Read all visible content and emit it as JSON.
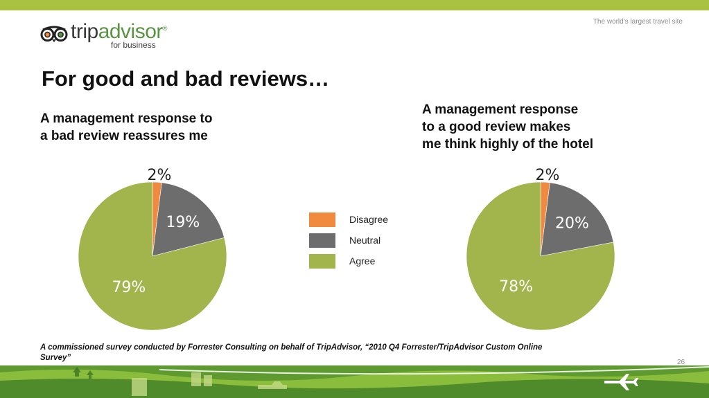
{
  "header": {
    "tagline": "The world's largest travel site",
    "logo": {
      "word_prefix": "trip",
      "word_suffix": "advisor",
      "registered": "®",
      "subtitle": "for business"
    }
  },
  "slide": {
    "title": "For good and bad reviews…",
    "page_number": "26",
    "footnote": "A commissioned survey conducted by Forrester Consulting on behalf of TripAdvisor, “2010 Q4 Forrester/TripAdvisor Custom Online Survey”"
  },
  "colors": {
    "disagree": "#f08a3e",
    "neutral": "#6d6d6d",
    "agree": "#a1b54c",
    "accent_bar": "#a9c23f",
    "landscape_dark": "#4f8a2b",
    "landscape_light": "#8fbf3f"
  },
  "chart_data": [
    {
      "type": "pie",
      "title": "A management response to\na bad review reassures me",
      "categories": [
        "Disagree",
        "Neutral",
        "Agree"
      ],
      "values": [
        2,
        19,
        79
      ],
      "labels": [
        "2%",
        "19%",
        "79%"
      ],
      "legend": "shared-center"
    },
    {
      "type": "pie",
      "title": "A management response\nto a good review makes\nme think highly of the hotel",
      "categories": [
        "Disagree",
        "Neutral",
        "Agree"
      ],
      "values": [
        2,
        20,
        78
      ],
      "labels": [
        "2%",
        "20%",
        "78%"
      ],
      "legend": "shared-center"
    }
  ],
  "legend": {
    "items": [
      {
        "label": "Disagree",
        "color": "#f08a3e"
      },
      {
        "label": "Neutral",
        "color": "#6d6d6d"
      },
      {
        "label": "Agree",
        "color": "#a1b54c"
      }
    ]
  }
}
